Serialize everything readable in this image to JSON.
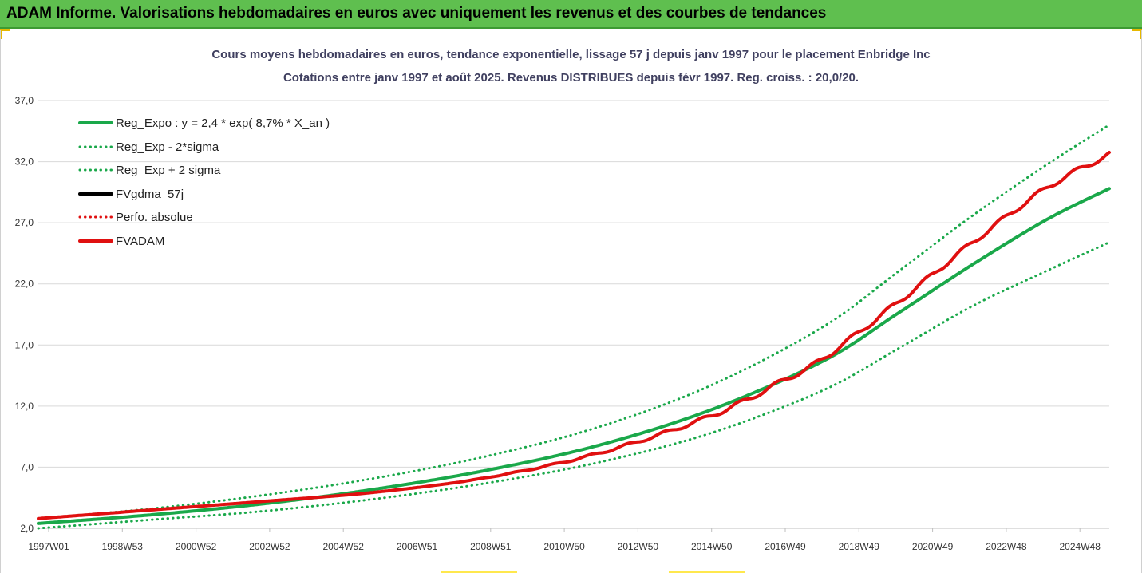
{
  "header": {
    "title": "ADAM Informe. Valorisations hebdomadaires en euros avec uniquement les revenus et des courbes de tendances"
  },
  "chart_data": {
    "type": "line",
    "title": "Cours moyens hebdomadaires en euros, tendance exponentielle, lissage 57 j depuis janv 1997 pour le placement Enbridge Inc",
    "subtitle": "Cotations entre janv 1997 et août 2025. Revenus DISTRIBUES depuis févr 1997. Reg. croiss. : 20,0/20.",
    "x_ticks": [
      "1997W01",
      "1998W53",
      "2000W52",
      "2002W52",
      "2004W52",
      "2006W51",
      "2008W51",
      "2010W50",
      "2012W50",
      "2014W50",
      "2016W49",
      "2018W49",
      "2020W49",
      "2022W48",
      "2024W48"
    ],
    "y_ticks": [
      "2,0",
      "7,0",
      "12,0",
      "17,0",
      "22,0",
      "27,0",
      "32,0",
      "37,0"
    ],
    "ylim": [
      2,
      37
    ],
    "xlim": [
      1997.0,
      2025.65
    ],
    "grid": "horizontal",
    "legend_position": "top-left",
    "series": [
      {
        "name": "Reg_Expo : y = 2,4 * exp( 8,7% *  X_an )",
        "color": "#1aa84a",
        "style": "solid",
        "points": [
          [
            1997.0,
            2.4
          ],
          [
            2000,
            3.1
          ],
          [
            2003,
            4.0
          ],
          [
            2006,
            5.2
          ],
          [
            2009,
            6.75
          ],
          [
            2012,
            8.8
          ],
          [
            2015,
            11.7
          ],
          [
            2018,
            15.7
          ],
          [
            2020,
            19.6
          ],
          [
            2022,
            23.6
          ],
          [
            2024,
            27.3
          ],
          [
            2025.65,
            29.8
          ]
        ]
      },
      {
        "name": "Reg_Exp - 2*sigma",
        "color": "#1aa84a",
        "style": "dotted",
        "points": [
          [
            1997.0,
            2.0
          ],
          [
            2000,
            2.7
          ],
          [
            2003,
            3.4
          ],
          [
            2006,
            4.4
          ],
          [
            2009,
            5.7
          ],
          [
            2012,
            7.4
          ],
          [
            2015,
            9.8
          ],
          [
            2018,
            13.3
          ],
          [
            2020,
            16.7
          ],
          [
            2022,
            20.2
          ],
          [
            2024,
            23.1
          ],
          [
            2025.65,
            25.4
          ]
        ]
      },
      {
        "name": "Reg_Exp + 2 sigma",
        "color": "#1aa84a",
        "style": "dotted",
        "points": [
          [
            1997.0,
            2.8
          ],
          [
            2000,
            3.6
          ],
          [
            2003,
            4.7
          ],
          [
            2006,
            6.1
          ],
          [
            2009,
            7.9
          ],
          [
            2012,
            10.3
          ],
          [
            2015,
            13.7
          ],
          [
            2018,
            18.5
          ],
          [
            2020,
            23.0
          ],
          [
            2022,
            27.6
          ],
          [
            2024,
            31.8
          ],
          [
            2025.65,
            35.0
          ]
        ]
      },
      {
        "name": "FVgdma_57j",
        "color": "#000000",
        "style": "solid",
        "points": []
      },
      {
        "name": "Perfo. absolue",
        "color": "#e01010",
        "style": "dotted",
        "points": []
      },
      {
        "name": "FVADAM",
        "color": "#e01010",
        "style": "solid",
        "points": [
          [
            1997.0,
            2.8
          ],
          [
            2000,
            3.5
          ],
          [
            2003,
            4.2
          ],
          [
            2006,
            4.95
          ],
          [
            2009,
            6.15
          ],
          [
            2012,
            8.15
          ],
          [
            2015,
            11.2
          ],
          [
            2017,
            14.2
          ],
          [
            2018,
            15.9
          ],
          [
            2020,
            20.5
          ],
          [
            2022,
            25.4
          ],
          [
            2024,
            29.9
          ],
          [
            2025.65,
            32.6
          ]
        ]
      }
    ]
  },
  "colors": {
    "header_bg": "#5fbf4f",
    "accent_yellow": "#ffe84d",
    "grid": "#d9d9d9"
  }
}
